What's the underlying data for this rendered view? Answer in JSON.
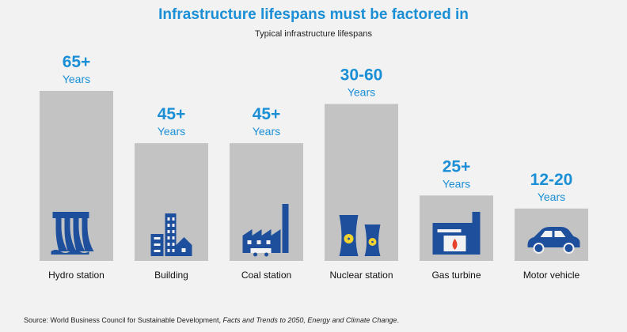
{
  "title": "Infrastructure lifespans must be factored in",
  "subtitle": "Typical infrastructure lifespans",
  "source": {
    "prefix": "Source: World Business Council for Sustainable Development, ",
    "italic": "Facts and Trends to 2050, Energy and Climate Change",
    "suffix": "."
  },
  "chart_data": {
    "type": "bar",
    "categories": [
      "Hydro station",
      "Building",
      "Coal station",
      "Nuclear station",
      "Gas turbine",
      "Motor vehicle"
    ],
    "values": [
      65,
      45,
      45,
      60,
      25,
      20
    ],
    "value_labels": [
      "65+",
      "45+",
      "45+",
      "30-60",
      "25+",
      "12-20"
    ],
    "unit_label": "Years",
    "icons": [
      "hydro-dam-icon",
      "city-buildings-icon",
      "coal-factory-icon",
      "cooling-towers-icon",
      "gas-turbine-icon",
      "car-icon"
    ],
    "colors": {
      "bar": "#c3c3c3",
      "label": "#1a8fd6",
      "icon": "#1d4f9c",
      "background": "#f2f2f2"
    },
    "ylim": [
      0,
      65
    ],
    "grid": false
  }
}
